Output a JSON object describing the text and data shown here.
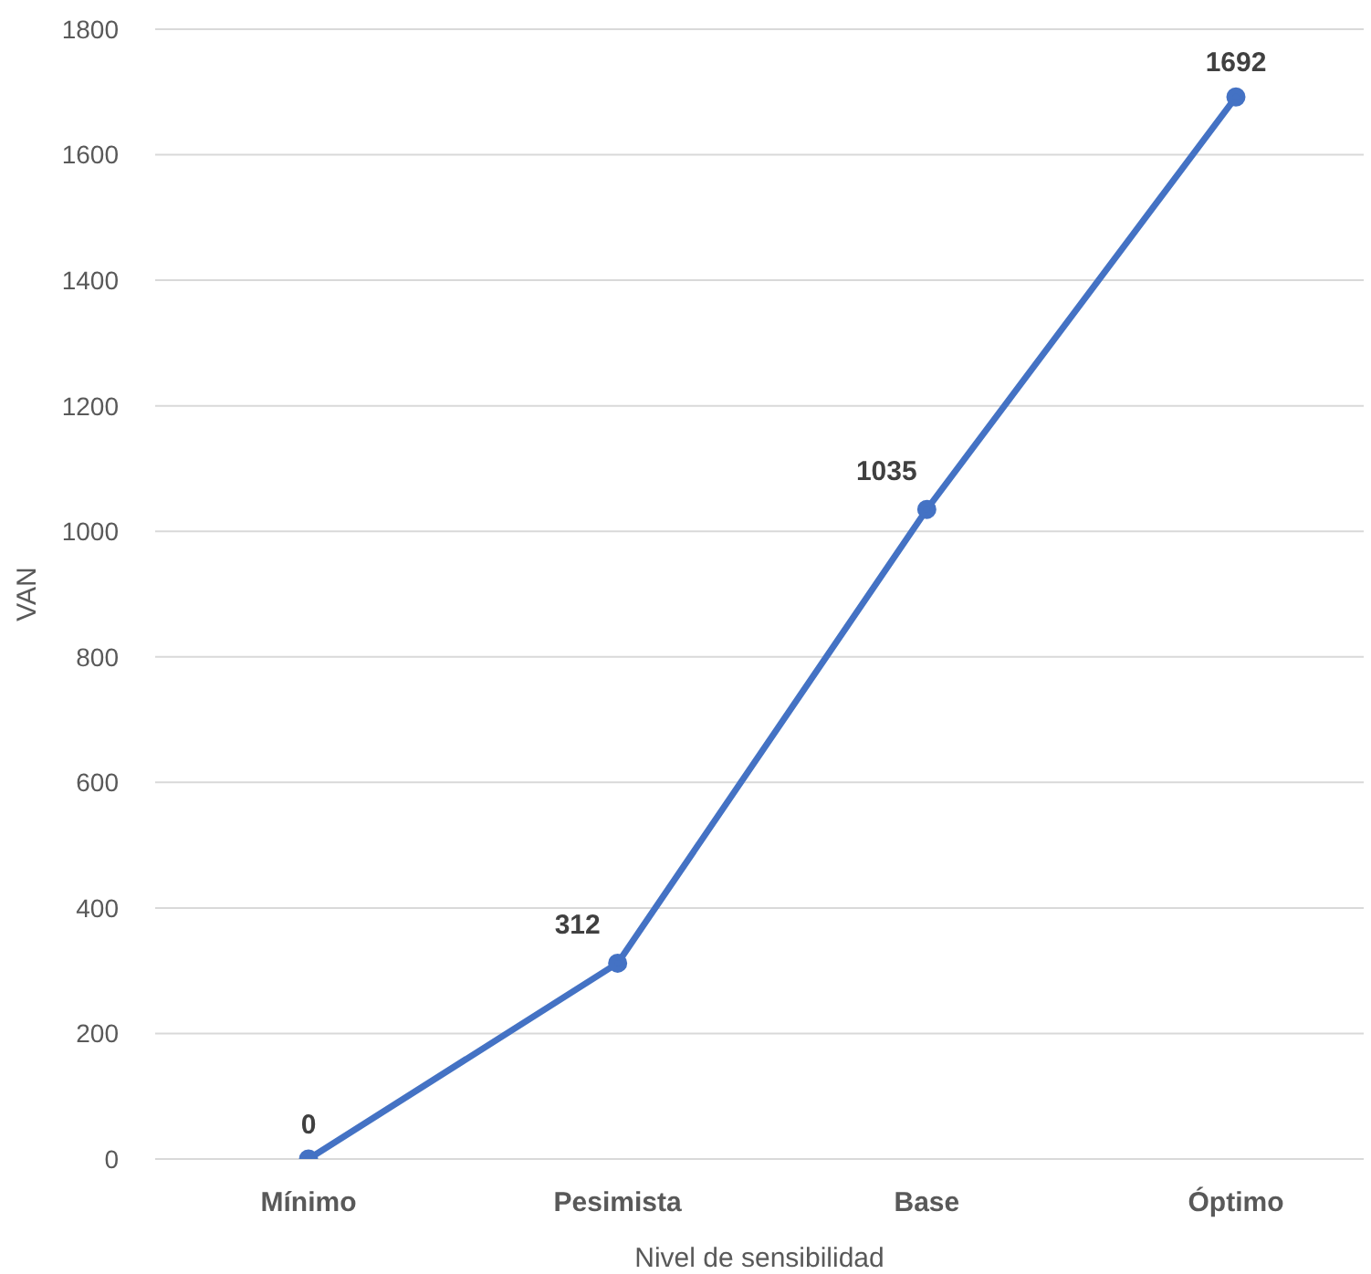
{
  "chart_data": {
    "type": "line",
    "xlabel": "Nivel de sensibilidad",
    "ylabel": "VAN",
    "categories": [
      "Mínimo",
      "Pesimista",
      "Base",
      "Óptimo"
    ],
    "series": [
      {
        "color": "#4472c4",
        "values": [
          0,
          312,
          1035,
          1692
        ]
      }
    ],
    "ylim": [
      0,
      1800
    ],
    "yticks": [
      0,
      200,
      400,
      600,
      800,
      1000,
      1200,
      1400,
      1600,
      1800
    ],
    "grid": "y",
    "legend": false,
    "marker": "circle",
    "line_style": "solid",
    "data_labels": true
  }
}
